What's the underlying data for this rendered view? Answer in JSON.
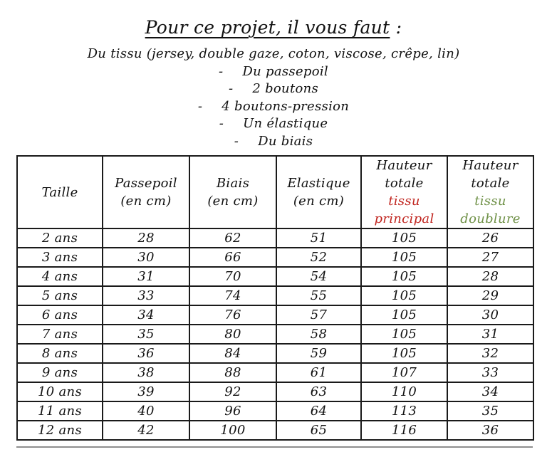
{
  "header": {
    "title": "Pour ce projet, il vous faut",
    "title_suffix": " :"
  },
  "materials": {
    "bullet": "-",
    "intro": "Du tissu (jersey, double gaze, coton, viscose, crêpe, lin)",
    "items": [
      "Du passepoil",
      "2 boutons",
      "4 boutons-pression",
      "Un élastique",
      "Du biais"
    ]
  },
  "colors": {
    "tissu_principal": "#c0241e",
    "tissu_doublure": "#6f9147",
    "text": "#111111",
    "table_border": "#1a1a1a"
  },
  "table": {
    "headers": {
      "taille": "Taille",
      "passepoil": "Passepoil",
      "biais": "Biais",
      "elastique": "Elastique",
      "unit": "(en cm)",
      "hauteur_line1": "Hauteur",
      "hauteur_line2": "totale",
      "principal_line1": "tissu",
      "principal_line2": "principal",
      "doublure_line1": "tissu",
      "doublure_line2": "doublure"
    },
    "rows": [
      [
        "2 ans",
        "28",
        "62",
        "51",
        "105",
        "26"
      ],
      [
        "3 ans",
        "30",
        "66",
        "52",
        "105",
        "27"
      ],
      [
        "4 ans",
        "31",
        "70",
        "54",
        "105",
        "28"
      ],
      [
        "5 ans",
        "33",
        "74",
        "55",
        "105",
        "29"
      ],
      [
        "6 ans",
        "34",
        "76",
        "57",
        "105",
        "30"
      ],
      [
        "7 ans",
        "35",
        "80",
        "58",
        "105",
        "31"
      ],
      [
        "8 ans",
        "36",
        "84",
        "59",
        "105",
        "32"
      ],
      [
        "9 ans",
        "38",
        "88",
        "61",
        "107",
        "33"
      ],
      [
        "10 ans",
        "39",
        "92",
        "63",
        "110",
        "34"
      ],
      [
        "11 ans",
        "40",
        "96",
        "64",
        "113",
        "35"
      ],
      [
        "12 ans",
        "42",
        "100",
        "65",
        "116",
        "36"
      ]
    ]
  }
}
